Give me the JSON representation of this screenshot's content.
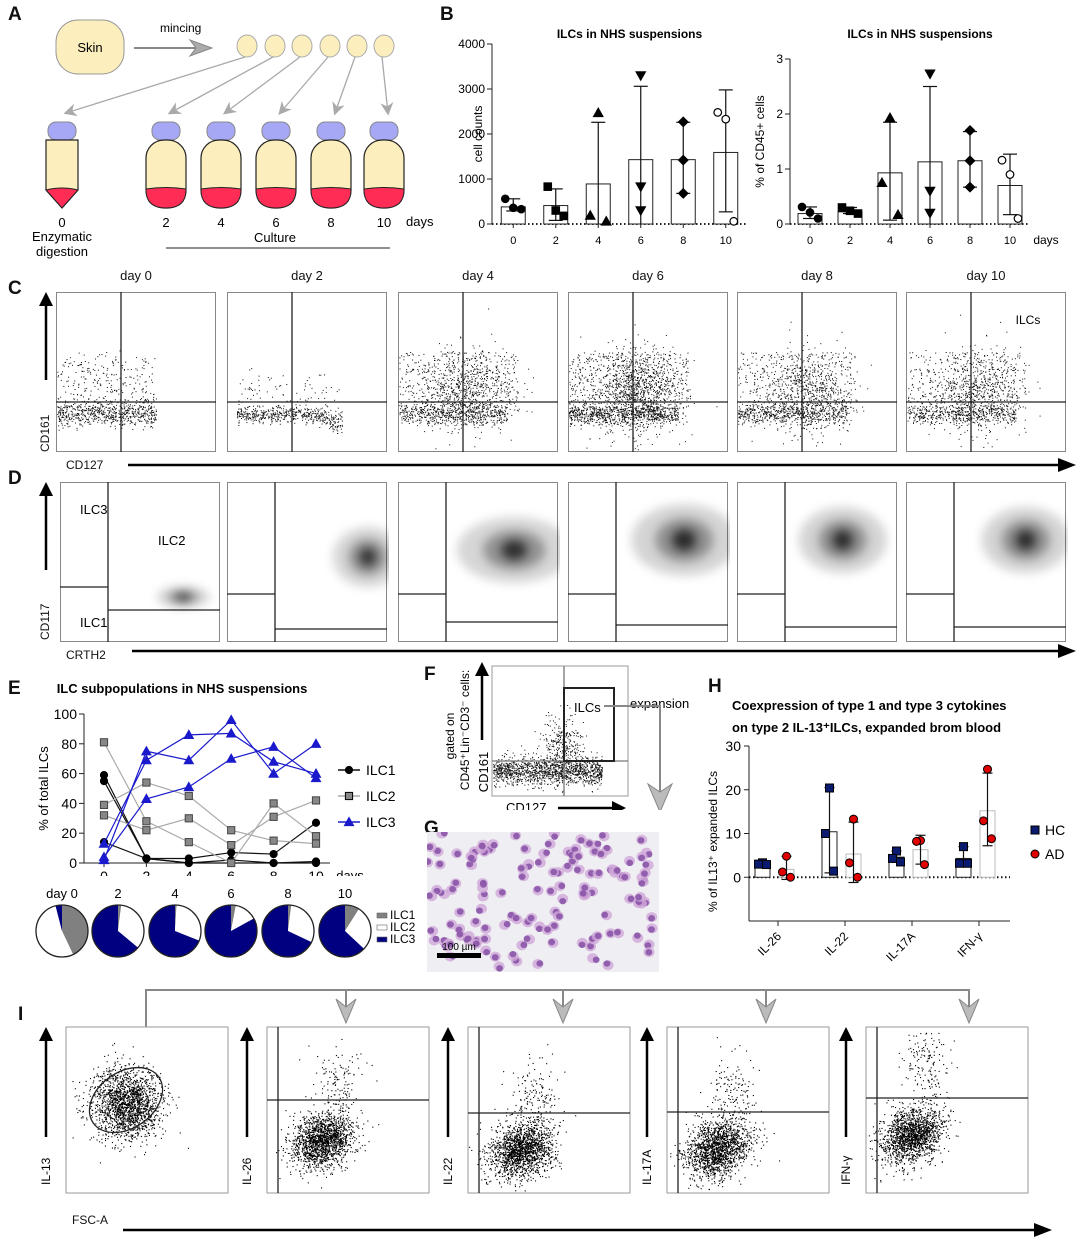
{
  "panels": {
    "A": {
      "letter": "A",
      "skin_label": "Skin",
      "mincing_label": "mincing",
      "days": [
        "0",
        "2",
        "4",
        "6",
        "8",
        "10"
      ],
      "days_unit": "days",
      "digestion_label_1": "Enzymatic",
      "digestion_label_2": "digestion",
      "culture_label": "Culture"
    },
    "B": {
      "letter": "B"
    },
    "C": {
      "letter": "C",
      "titles": [
        "day 0",
        "day 2",
        "day 4",
        "day 6",
        "day 8",
        "day 10"
      ],
      "ylabel": "CD161",
      "xlabel": "CD127",
      "gate_label": "ILCs"
    },
    "D": {
      "letter": "D",
      "ylabel": "CD117",
      "xlabel": "CRTH2",
      "gate_labels": {
        "ilc3": "ILC3",
        "ilc2": "ILC2",
        "ilc1": "ILC1"
      }
    },
    "E": {
      "letter": "E"
    },
    "F": {
      "letter": "F",
      "gated_on_line1": "gated on",
      "gated_on_line2": "CD45⁺Lin⁻CD3⁻ cells:",
      "ylabel": "CD161",
      "xlabel": "CD127",
      "gate_label": "ILCs",
      "arrow_label": "expansion"
    },
    "G": {
      "letter": "G",
      "scale_bar": "100 µm"
    },
    "H": {
      "letter": "H"
    },
    "I": {
      "letter": "I",
      "xlabel": "FSC-A",
      "ylabels": [
        "IL-13",
        "IL-26",
        "IL-22",
        "IL-17A",
        "IFN-γ"
      ]
    }
  },
  "colors": {
    "ilc1": "#111111",
    "ilc2": "#8a8a8a",
    "ilc3": "#1a1acc",
    "pie_ilc1": "#808080",
    "pie_ilc2": "#ffffff",
    "pie_ilc3": "#000080",
    "hc": "#0a1a6e",
    "ad": "#e00000",
    "tube_body": "#fcefbd",
    "tube_cap": "#a7a8f5",
    "tube_media": "#ff2d55",
    "arrow_gray": "#a9a9a9"
  },
  "chart_data": [
    {
      "id": "B-left",
      "type": "bar",
      "title": "ILCs in NHS suspensions",
      "xlabel": "",
      "ylabel": "cell counts",
      "categories": [
        "0",
        "2",
        "4",
        "6",
        "8",
        "10"
      ],
      "ylim": [
        0,
        4000
      ],
      "yticks": [
        0,
        1000,
        2000,
        3000,
        4000
      ],
      "values": [
        380,
        410,
        890,
        1430,
        1430,
        1590
      ],
      "error_upper": [
        560,
        780,
        2260,
        3060,
        2260,
        2980
      ],
      "error_lower": [
        290,
        80,
        0,
        0,
        680,
        270
      ],
      "points": [
        [
          560,
          360,
          330
        ],
        [
          830,
          300,
          180
        ],
        [
          2470,
          190,
          60
        ],
        [
          3300,
          830,
          300
        ],
        [
          2270,
          1420,
          680
        ],
        [
          2480,
          2330,
          60
        ]
      ],
      "markers": [
        "circle",
        "square",
        "triangle-up",
        "triangle-down",
        "diamond",
        "circle-open"
      ]
    },
    {
      "id": "B-right",
      "type": "bar",
      "title": "ILCs in NHS suspensions",
      "xlabel": "days",
      "ylabel": "% of CD45+ cells",
      "categories": [
        "0",
        "2",
        "4",
        "6",
        "8",
        "10"
      ],
      "ylim": [
        0,
        3
      ],
      "yticks": [
        0,
        1,
        2,
        3
      ],
      "values": [
        0.19,
        0.22,
        0.93,
        1.13,
        1.15,
        0.7
      ],
      "error_upper": [
        0.31,
        0.3,
        1.85,
        2.5,
        1.68,
        1.27
      ],
      "error_lower": [
        0.1,
        0.19,
        0.07,
        0,
        0.67,
        0.17
      ],
      "points": [
        [
          0.31,
          0.21,
          0.1
        ],
        [
          0.3,
          0.24,
          0.19
        ],
        [
          1.93,
          0.75,
          0.17
        ],
        [
          2.73,
          0.6,
          0.2
        ],
        [
          1.7,
          1.15,
          0.67
        ],
        [
          1.16,
          0.9,
          0.1
        ]
      ],
      "markers": [
        "circle",
        "square",
        "triangle-up",
        "triangle-down",
        "diamond",
        "circle-open"
      ]
    },
    {
      "id": "E",
      "type": "line",
      "title": "ILC subpopulations in NHS suspensions",
      "xlabel": "days",
      "ylabel": "% of  total  ILCs",
      "x": [
        0,
        2,
        4,
        6,
        8,
        10
      ],
      "ylim": [
        0,
        100
      ],
      "yticks": [
        0,
        20,
        40,
        60,
        80,
        100
      ],
      "legend": "right",
      "series": [
        {
          "name": "ILC1",
          "marker": "circle",
          "donors": [
            [
              59,
              3,
              0,
              0,
              0,
              0
            ],
            [
              55,
              3,
              0,
              2,
              0,
              1
            ],
            [
              14,
              3,
              3,
              7,
              6,
              27
            ]
          ]
        },
        {
          "name": "ILC2",
          "marker": "square",
          "donors": [
            [
              81,
              28,
              14,
              0,
              40,
              18
            ],
            [
              39,
              54,
              45,
              22,
              15,
              13
            ],
            [
              32,
              22,
              30,
              12,
              31,
              42
            ]
          ]
        },
        {
          "name": "ILC3",
          "marker": "triangle",
          "donors": [
            [
              2,
              75,
              69,
              96,
              60,
              80
            ],
            [
              13,
              69,
              86,
              87,
              68,
              60
            ],
            [
              4,
              43,
              51,
              70,
              78,
              57
            ]
          ]
        }
      ]
    },
    {
      "id": "E-pies",
      "type": "pie",
      "labels": [
        "day 0",
        "2",
        "4",
        "6",
        "8",
        "10"
      ],
      "legend": [
        "ILC1",
        "ILC2",
        "ILC3"
      ],
      "slices": [
        {
          "ILC1": 43,
          "ILC2": 53,
          "ILC3": 4
        },
        {
          "ILC1": 2,
          "ILC2": 34,
          "ILC3": 64
        },
        {
          "ILC1": 1,
          "ILC2": 30,
          "ILC3": 69
        },
        {
          "ILC1": 3,
          "ILC2": 14,
          "ILC3": 83
        },
        {
          "ILC1": 2,
          "ILC2": 30,
          "ILC3": 68
        },
        {
          "ILC1": 9,
          "ILC2": 28,
          "ILC3": 63
        }
      ]
    },
    {
      "id": "H",
      "type": "bar",
      "title": "Coexpression of type 1 and type 3 cytokines on type 2 IL-13⁺ILCs, expanded brom blood",
      "xlabel": "",
      "ylabel": "% of IL13+ expanded ILCs",
      "categories": [
        "IL-26",
        "IL-22",
        "IL-17A",
        "IFN-γ"
      ],
      "ylim": [
        -10,
        30
      ],
      "yticks": [
        0,
        10,
        20,
        30
      ],
      "legend": "right",
      "series": [
        {
          "name": "HC",
          "marker": "square",
          "values": [
            3.1,
            10.4,
            4.6,
            4.3
          ],
          "error_upper": [
            3.5,
            20.5,
            6.0,
            7.0
          ],
          "error_lower": [
            2.8,
            1.0,
            3.5,
            3.0
          ],
          "points": [
            [
              3.3,
              3.0,
              2.9
            ],
            [
              20.4,
              10.0,
              1.4
            ],
            [
              6.0,
              4.3,
              3.5
            ],
            [
              7.0,
              3.2,
              3.2
            ]
          ]
        },
        {
          "name": "AD",
          "marker": "circle",
          "values": [
            1.8,
            5.3,
            6.3,
            15.2
          ],
          "error_upper": [
            4.8,
            12.6,
            9.6,
            23.8
          ],
          "error_lower": [
            -0.5,
            -1.2,
            3.0,
            7.2
          ],
          "points": [
            [
              4.8,
              1.2,
              0.0
            ],
            [
              13.3,
              3.3,
              0.0
            ],
            [
              8.4,
              8.2,
              2.9
            ],
            [
              24.7,
              12.9,
              8.8
            ]
          ]
        }
      ]
    }
  ],
  "labels": {
    "E_legend": [
      "ILC1",
      "ILC2",
      "ILC3"
    ],
    "pie_legend": [
      "ILC1",
      "ILC2",
      "ILC3"
    ],
    "H_legend": [
      "HC",
      "AD"
    ]
  }
}
